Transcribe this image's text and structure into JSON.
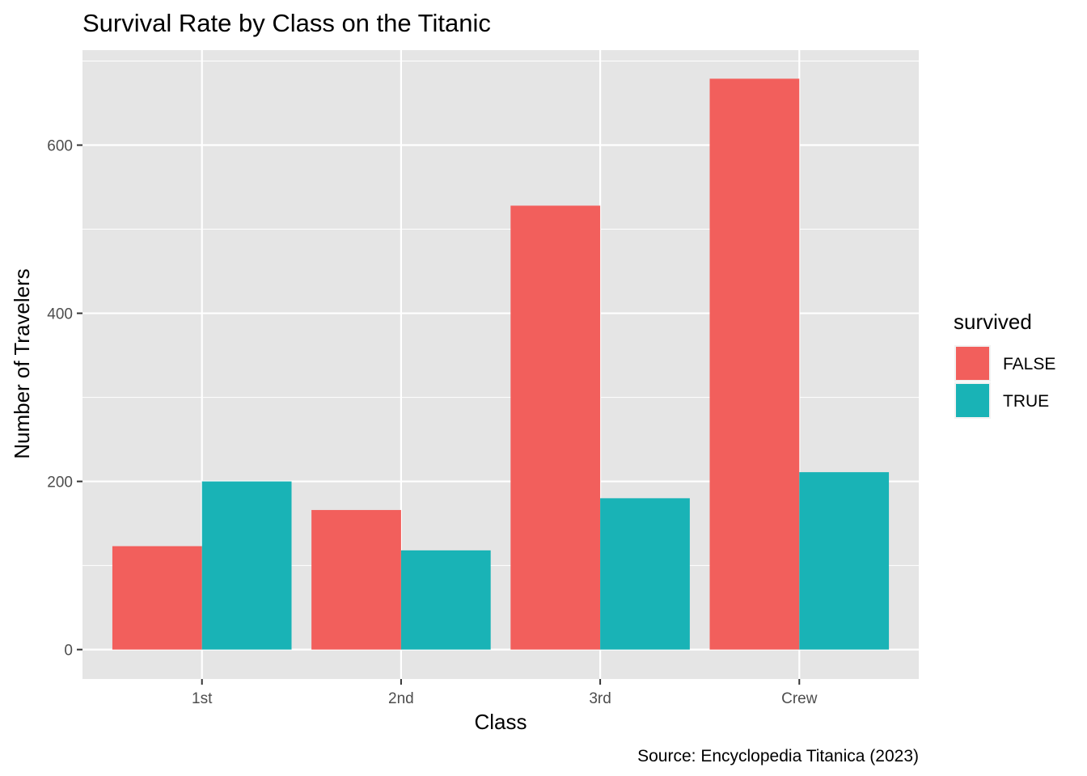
{
  "chart_data": {
    "type": "bar",
    "title": "Survival Rate by Class on the Titanic",
    "xlabel": "Class",
    "ylabel": "Number of Travelers",
    "caption": "Source: Encyclopedia Titanica (2023)",
    "categories": [
      "1st",
      "2nd",
      "3rd",
      "Crew"
    ],
    "legend_title": "survived",
    "legend_position": "right",
    "series": [
      {
        "name": "FALSE",
        "color": "#F25F5C",
        "values": [
          123,
          166,
          528,
          679
        ]
      },
      {
        "name": "TRUE",
        "color": "#19B3B6",
        "values": [
          200,
          118,
          180,
          211
        ]
      }
    ],
    "ylim": [
      -35,
      713
    ],
    "yticks": [
      0,
      200,
      400,
      600
    ],
    "grid": true,
    "panel_background": "#E5E5E5"
  }
}
